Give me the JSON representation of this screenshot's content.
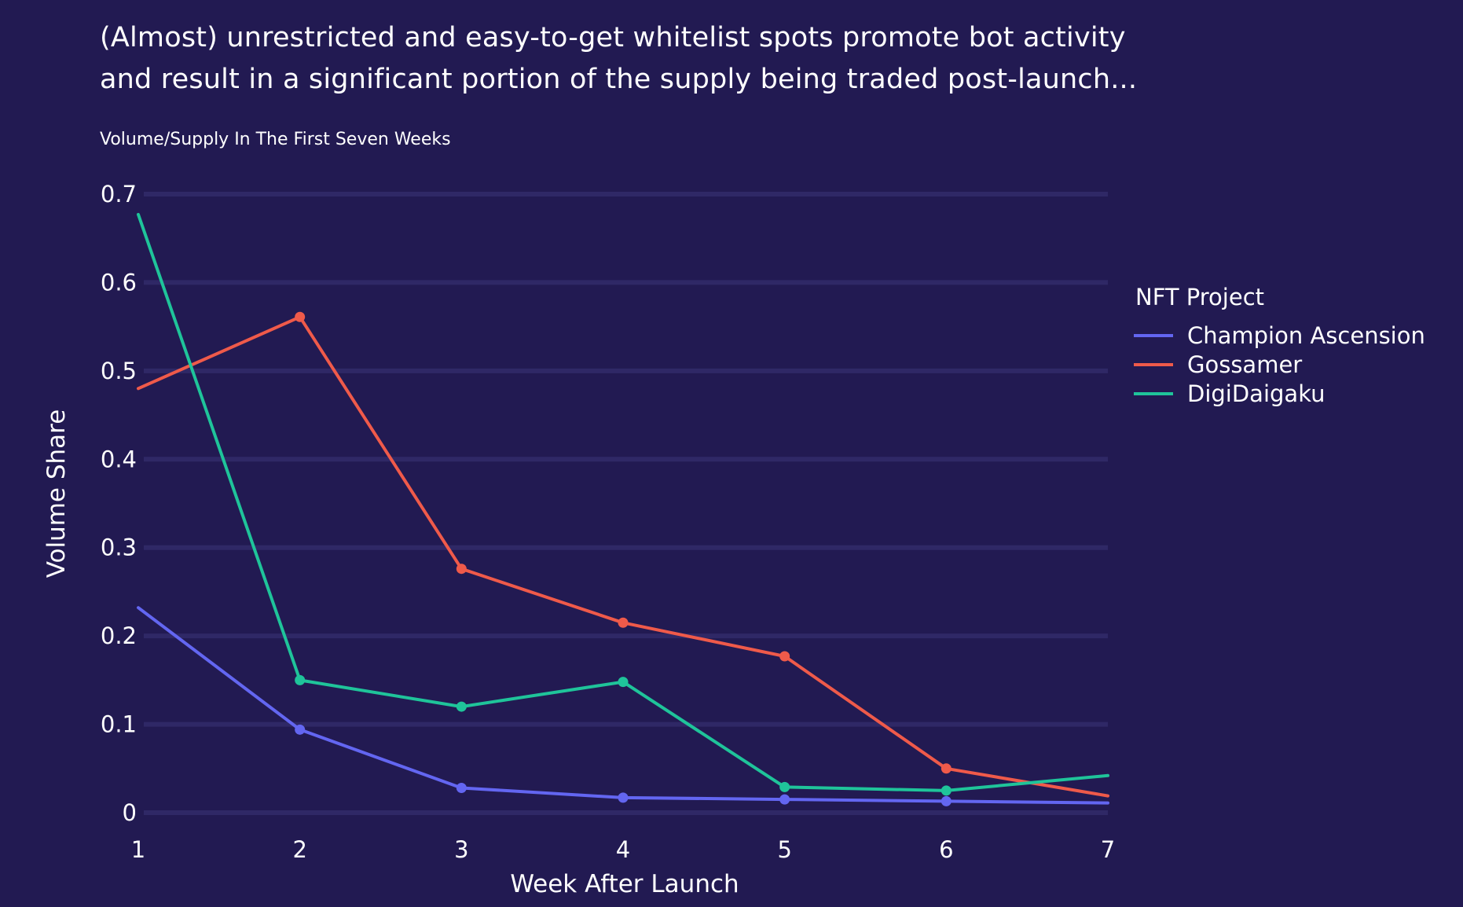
{
  "chart_data": {
    "type": "line",
    "title": "(Almost) unrestricted and easy-to-get whitelist spots promote bot activity and result in a significant portion of the supply being traded post-launch...",
    "title_lines": [
      "(Almost) unrestricted and easy-to-get whitelist spots promote bot activity",
      "and result in a significant portion of the supply being traded post-launch..."
    ],
    "subtitle": "Volume/Supply In The First Seven Weeks",
    "xlabel": "Week After Launch",
    "ylabel": "Volume Share",
    "x": [
      1,
      2,
      3,
      4,
      5,
      6,
      7
    ],
    "x_tick_labels": [
      "1",
      "2",
      "3",
      "4",
      "5",
      "6",
      "7"
    ],
    "y_ticks": [
      0,
      0.1,
      0.2,
      0.3,
      0.4,
      0.5,
      0.6,
      0.7
    ],
    "y_tick_labels": [
      "0",
      "0.1",
      "0.2",
      "0.3",
      "0.4",
      "0.5",
      "0.6",
      "0.7"
    ],
    "xlim": [
      1,
      7
    ],
    "ylim": [
      0,
      0.7
    ],
    "grid": "horizontal",
    "legend_title": "NFT Project",
    "legend_position": "right",
    "series": [
      {
        "name": "Champion Ascension",
        "color": "#6366f1",
        "values": [
          0.232,
          0.094,
          0.028,
          0.017,
          0.015,
          0.013,
          0.011
        ]
      },
      {
        "name": "Gossamer",
        "color": "#ef5a4a",
        "values": [
          0.48,
          0.561,
          0.276,
          0.215,
          0.177,
          0.05,
          0.019
        ]
      },
      {
        "name": "DigiDaigaku",
        "color": "#1fc49a",
        "values": [
          0.677,
          0.15,
          0.12,
          0.148,
          0.029,
          0.025,
          0.042
        ]
      }
    ]
  }
}
